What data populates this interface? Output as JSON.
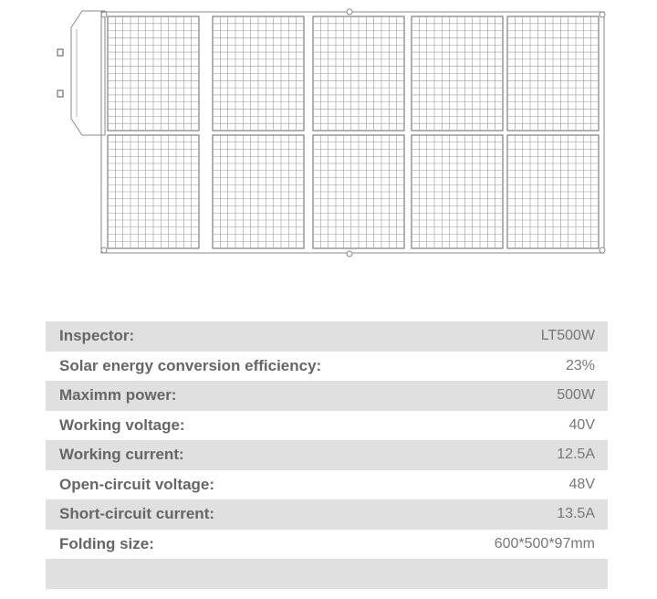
{
  "specs": [
    {
      "label": "Inspector:",
      "value": "LT500W"
    },
    {
      "label": "Solar energy conversion efficiency:",
      "value": "23%"
    },
    {
      "label": "Maximm power:",
      "value": "500W"
    },
    {
      "label": "Working voltage:",
      "value": "40V"
    },
    {
      "label": "Working current:",
      "value": "12.5A"
    },
    {
      "label": "Open-circuit voltage:",
      "value": "48V"
    },
    {
      "label": "Short-circuit current:",
      "value": "13.5A"
    },
    {
      "label": "Folding size:",
      "value": "600*500*97mm"
    },
    {
      "label": "",
      "value": ""
    }
  ],
  "colors": {
    "row_shade": "#e0e0e0",
    "label_text": "#666666",
    "value_text": "#777777",
    "line_art": "#8a8a8a"
  },
  "icons": [
    "solar-panel-line-drawing"
  ]
}
